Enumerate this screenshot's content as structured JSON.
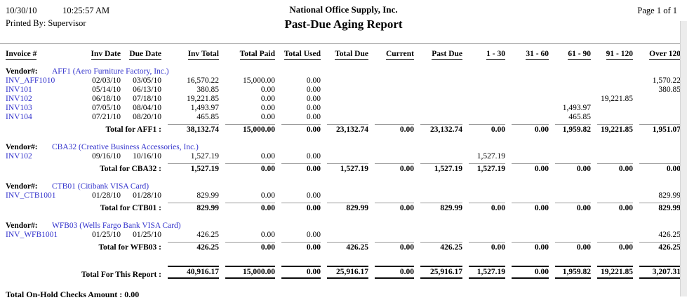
{
  "header": {
    "date": "10/30/10",
    "time": "10:25:57 AM",
    "printed_by": "Printed By: Supervisor",
    "company": "National Office Supply, Inc.",
    "title": "Past-Due Aging Report",
    "page": "Page 1 of 1"
  },
  "columns": [
    "Invoice #",
    "Inv Date",
    "Due Date",
    "Inv Total",
    "Total Paid",
    "Total Used",
    "Total Due",
    "Current",
    "Past Due",
    "1 - 30",
    "31 - 60",
    "61 - 90",
    "91 - 120",
    "Over 120"
  ],
  "column_keys": [
    "invoice",
    "inv_date",
    "due_date",
    "inv_total",
    "total_paid",
    "total_used",
    "total_due",
    "current",
    "past_due",
    "b1_30",
    "b31_60",
    "b61_90",
    "b91_120",
    "over_120"
  ],
  "groups": [
    {
      "vendor_label": "Vendor#:",
      "vendor": "AFF1 (Aero Furniture Factory, Inc.)",
      "rows": [
        {
          "invoice": "INV_AFF1010",
          "inv_date": "02/03/10",
          "due_date": "03/05/10",
          "inv_total": "16,570.22",
          "total_paid": "15,000.00",
          "total_used": "0.00",
          "total_due": "",
          "current": "",
          "past_due": "",
          "b1_30": "",
          "b31_60": "",
          "b61_90": "",
          "b91_120": "",
          "over_120": "1,570.22"
        },
        {
          "invoice": "INV101",
          "inv_date": "05/14/10",
          "due_date": "06/13/10",
          "inv_total": "380.85",
          "total_paid": "0.00",
          "total_used": "0.00",
          "total_due": "",
          "current": "",
          "past_due": "",
          "b1_30": "",
          "b31_60": "",
          "b61_90": "",
          "b91_120": "",
          "over_120": "380.85"
        },
        {
          "invoice": "INV102",
          "inv_date": "06/18/10",
          "due_date": "07/18/10",
          "inv_total": "19,221.85",
          "total_paid": "0.00",
          "total_used": "0.00",
          "total_due": "",
          "current": "",
          "past_due": "",
          "b1_30": "",
          "b31_60": "",
          "b61_90": "",
          "b91_120": "19,221.85",
          "over_120": ""
        },
        {
          "invoice": "INV103",
          "inv_date": "07/05/10",
          "due_date": "08/04/10",
          "inv_total": "1,493.97",
          "total_paid": "0.00",
          "total_used": "0.00",
          "total_due": "",
          "current": "",
          "past_due": "",
          "b1_30": "",
          "b31_60": "",
          "b61_90": "1,493.97",
          "b91_120": "",
          "over_120": ""
        },
        {
          "invoice": "INV104",
          "inv_date": "07/21/10",
          "due_date": "08/20/10",
          "inv_total": "465.85",
          "total_paid": "0.00",
          "total_used": "0.00",
          "total_due": "",
          "current": "",
          "past_due": "",
          "b1_30": "",
          "b31_60": "",
          "b61_90": "465.85",
          "b91_120": "",
          "over_120": ""
        }
      ],
      "total": {
        "label": "Total for AFF1 :",
        "inv_total": "38,132.74",
        "total_paid": "15,000.00",
        "total_used": "0.00",
        "total_due": "23,132.74",
        "current": "0.00",
        "past_due": "23,132.74",
        "b1_30": "0.00",
        "b31_60": "0.00",
        "b61_90": "1,959.82",
        "b91_120": "19,221.85",
        "over_120": "1,951.07"
      }
    },
    {
      "vendor_label": "Vendor#:",
      "vendor": "CBA32 (Creative Business Accessories, Inc.)",
      "rows": [
        {
          "invoice": "INV102",
          "inv_date": "09/16/10",
          "due_date": "10/16/10",
          "inv_total": "1,527.19",
          "total_paid": "0.00",
          "total_used": "0.00",
          "total_due": "",
          "current": "",
          "past_due": "",
          "b1_30": "1,527.19",
          "b31_60": "",
          "b61_90": "",
          "b91_120": "",
          "over_120": ""
        }
      ],
      "total": {
        "label": "Total for CBA32 :",
        "inv_total": "1,527.19",
        "total_paid": "0.00",
        "total_used": "0.00",
        "total_due": "1,527.19",
        "current": "0.00",
        "past_due": "1,527.19",
        "b1_30": "1,527.19",
        "b31_60": "0.00",
        "b61_90": "0.00",
        "b91_120": "0.00",
        "over_120": "0.00"
      }
    },
    {
      "vendor_label": "Vendor#:",
      "vendor": "CTB01 (Citibank VISA Card)",
      "rows": [
        {
          "invoice": "INV_CTB1001",
          "inv_date": "01/28/10",
          "due_date": "01/28/10",
          "inv_total": "829.99",
          "total_paid": "0.00",
          "total_used": "0.00",
          "total_due": "",
          "current": "",
          "past_due": "",
          "b1_30": "",
          "b31_60": "",
          "b61_90": "",
          "b91_120": "",
          "over_120": "829.99"
        }
      ],
      "total": {
        "label": "Total for CTB01 :",
        "inv_total": "829.99",
        "total_paid": "0.00",
        "total_used": "0.00",
        "total_due": "829.99",
        "current": "0.00",
        "past_due": "829.99",
        "b1_30": "0.00",
        "b31_60": "0.00",
        "b61_90": "0.00",
        "b91_120": "0.00",
        "over_120": "829.99"
      }
    },
    {
      "vendor_label": "Vendor#:",
      "vendor": "WFB03 (Wells Fargo Bank VISA Card)",
      "rows": [
        {
          "invoice": "INV_WFB1001",
          "inv_date": "01/25/10",
          "due_date": "01/25/10",
          "inv_total": "426.25",
          "total_paid": "0.00",
          "total_used": "0.00",
          "total_due": "",
          "current": "",
          "past_due": "",
          "b1_30": "",
          "b31_60": "",
          "b61_90": "",
          "b91_120": "",
          "over_120": "426.25"
        }
      ],
      "total": {
        "label": "Total for WFB03 :",
        "inv_total": "426.25",
        "total_paid": "0.00",
        "total_used": "0.00",
        "total_due": "426.25",
        "current": "0.00",
        "past_due": "426.25",
        "b1_30": "0.00",
        "b31_60": "0.00",
        "b61_90": "0.00",
        "b91_120": "0.00",
        "over_120": "426.25"
      }
    }
  ],
  "report_total": {
    "label": "Total For This Report :",
    "inv_total": "40,916.17",
    "total_paid": "15,000.00",
    "total_used": "0.00",
    "total_due": "25,916.17",
    "current": "0.00",
    "past_due": "25,916.17",
    "b1_30": "1,527.19",
    "b31_60": "0.00",
    "b61_90": "1,959.82",
    "b91_120": "19,221.85",
    "over_120": "3,207.31"
  },
  "footer": {
    "on_hold_label": "Total On-Hold Checks Amount :",
    "on_hold_value": "0.00"
  },
  "colors": {
    "link_blue": "#3333CC",
    "rule_gray": "#8C8C8C",
    "subtotal_line_gray": "#999999",
    "text_black": "#000000",
    "page_background": "#FFFFFF"
  }
}
